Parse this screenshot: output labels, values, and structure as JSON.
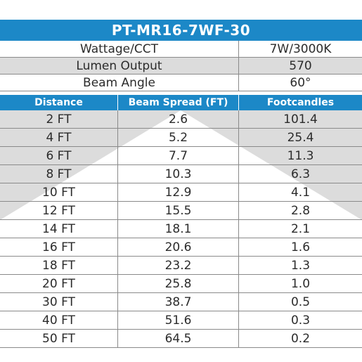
{
  "title": "PT-MR16-7WF-30",
  "specs": [
    {
      "label": "Wattage/CCT",
      "value": "7W/3000K"
    },
    {
      "label": "Lumen Output",
      "value": "570"
    },
    {
      "label": "Beam Angle",
      "value": "60°"
    }
  ],
  "columns": [
    "Distance",
    "Beam Spread (FT)",
    "Footcandles"
  ],
  "rows": [
    {
      "distance": "2 FT",
      "spread": "2.6",
      "fc": "101.4"
    },
    {
      "distance": "4 FT",
      "spread": "5.2",
      "fc": "25.4"
    },
    {
      "distance": "6 FT",
      "spread": "7.7",
      "fc": "11.3"
    },
    {
      "distance": "8 FT",
      "spread": "10.3",
      "fc": "6.3"
    },
    {
      "distance": "10 FT",
      "spread": "12.9",
      "fc": "4.1"
    },
    {
      "distance": "12 FT",
      "spread": "15.5",
      "fc": "2.8"
    },
    {
      "distance": "14 FT",
      "spread": "18.1",
      "fc": "2.1"
    },
    {
      "distance": "16 FT",
      "spread": "20.6",
      "fc": "1.6"
    },
    {
      "distance": "18 FT",
      "spread": "23.2",
      "fc": "1.3"
    },
    {
      "distance": "20 FT",
      "spread": "25.8",
      "fc": "1.0"
    },
    {
      "distance": "30 FT",
      "spread": "38.7",
      "fc": "0.5"
    },
    {
      "distance": "40 FT",
      "spread": "51.6",
      "fc": "0.3"
    },
    {
      "distance": "50 FT",
      "spread": "64.5",
      "fc": "0.2"
    }
  ],
  "colors": {
    "header_blue": "#1c88c7",
    "beam_gray": "#dcdcdc",
    "grid": "#8a8a8a"
  }
}
